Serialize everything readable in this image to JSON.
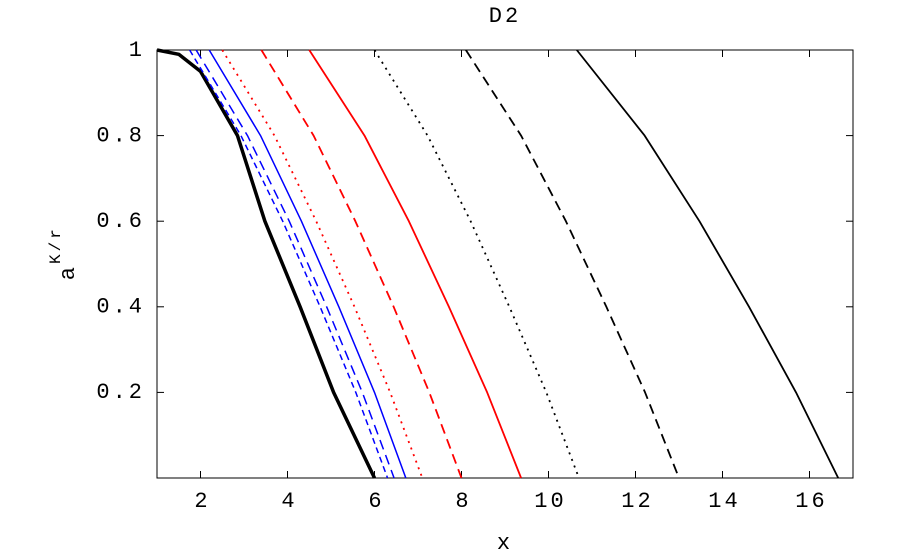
{
  "chart_data": {
    "type": "line",
    "title": "D2",
    "x_label": "x",
    "y_label": "a",
    "y_label_superscript": "K/r",
    "xlim": [
      1,
      17
    ],
    "ylim": [
      0,
      1
    ],
    "xticks": [
      2,
      4,
      6,
      8,
      10,
      12,
      14,
      16
    ],
    "yticks": [
      0.2,
      0.4,
      0.6,
      0.8,
      1
    ],
    "series": [
      {
        "color": "#000000",
        "style": "solid",
        "width": 3.5,
        "x": [
          1,
          1.5,
          2.0,
          2.85,
          3.48,
          4.29,
          5.06,
          6.0
        ],
        "values": [
          1,
          0.99,
          0.95,
          0.8,
          0.6,
          0.4,
          0.2,
          0
        ]
      },
      {
        "color": "#0000ff",
        "style": "dashed-short",
        "width": 1.5,
        "x": [
          1.75,
          2.93,
          3.89,
          4.75,
          5.57,
          6.3
        ],
        "values": [
          1,
          0.8,
          0.6,
          0.4,
          0.2,
          0
        ]
      },
      {
        "color": "#0000ff",
        "style": "dashed",
        "width": 1.5,
        "x": [
          1.9,
          3.08,
          4.04,
          4.9,
          5.72,
          6.45
        ],
        "values": [
          1,
          0.8,
          0.6,
          0.4,
          0.2,
          0
        ]
      },
      {
        "color": "#0000ff",
        "style": "solid",
        "width": 1.5,
        "x": [
          2.2,
          3.38,
          4.32,
          5.18,
          6.0,
          6.72
        ],
        "values": [
          1,
          0.8,
          0.6,
          0.4,
          0.2,
          0
        ]
      },
      {
        "color": "#ff0000",
        "style": "dotted",
        "width": 1.8,
        "x": [
          2.5,
          3.7,
          4.66,
          5.54,
          6.36,
          7.1
        ],
        "values": [
          1,
          0.8,
          0.6,
          0.4,
          0.2,
          0
        ]
      },
      {
        "color": "#ff0000",
        "style": "dashed",
        "width": 1.8,
        "x": [
          3.4,
          4.6,
          5.56,
          6.44,
          7.26,
          8.0
        ],
        "values": [
          1,
          0.8,
          0.6,
          0.4,
          0.2,
          0
        ]
      },
      {
        "color": "#ff0000",
        "style": "solid",
        "width": 1.8,
        "x": [
          4.5,
          5.77,
          6.79,
          7.71,
          8.59,
          9.37
        ],
        "values": [
          1,
          0.8,
          0.6,
          0.4,
          0.2,
          0
        ]
      },
      {
        "color": "#000000",
        "style": "dotted",
        "width": 1.8,
        "x": [
          6.0,
          7.22,
          8.21,
          9.1,
          9.95,
          10.7
        ],
        "values": [
          1,
          0.8,
          0.6,
          0.4,
          0.2,
          0
        ]
      },
      {
        "color": "#000000",
        "style": "dashed",
        "width": 1.8,
        "x": [
          8.1,
          9.37,
          10.4,
          11.33,
          12.22,
          13.0
        ],
        "values": [
          1,
          0.8,
          0.6,
          0.4,
          0.2,
          0
        ]
      },
      {
        "color": "#000000",
        "style": "solid",
        "width": 1.8,
        "x": [
          10.65,
          12.21,
          13.47,
          14.61,
          15.69,
          16.66
        ],
        "values": [
          1,
          0.8,
          0.6,
          0.4,
          0.2,
          0
        ]
      }
    ]
  }
}
